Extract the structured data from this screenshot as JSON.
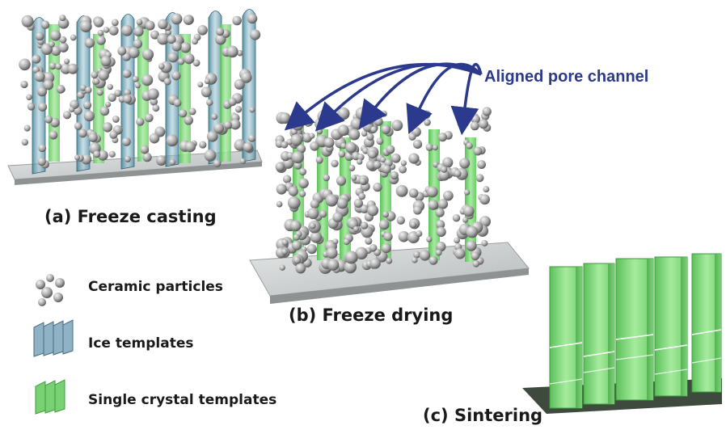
{
  "stages": {
    "a": "(a) Freeze casting",
    "b": "(b) Freeze drying",
    "c": "(c) Sintering"
  },
  "annotation": "Aligned pore channel",
  "legend": {
    "particles": "Ceramic particles",
    "ice": "Ice templates",
    "crystal": "Single crystal templates"
  },
  "colors": {
    "ice": "#6f9cb0",
    "crystal": "#7ed67a",
    "particle": "#a9a9a9",
    "base": "#c9cccc",
    "arrow": "#2b3a8c"
  }
}
